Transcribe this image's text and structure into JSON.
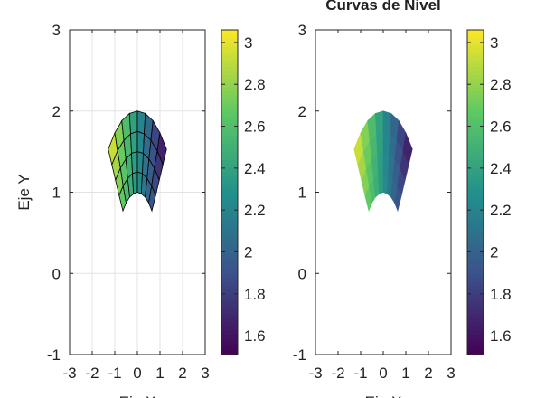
{
  "chart_data": [
    {
      "type": "surface",
      "ylabel": "Eje Y",
      "xlabel": "Eje X",
      "grid": true,
      "edges": true,
      "colormap": "viridis",
      "xlim": [
        -3,
        3
      ],
      "ylim": [
        -1,
        3
      ],
      "xticks": [
        -3,
        -2,
        -1,
        0,
        1,
        2,
        3
      ],
      "yticks": [
        -1,
        0,
        1,
        2,
        3
      ],
      "clim": [
        1.51,
        3.06
      ],
      "colorbar_ticks": [
        1.6,
        1.8,
        2,
        2.2,
        2.4,
        2.6,
        2.8,
        3
      ],
      "x": [
        [
          -0.64,
          -0.5,
          -0.34,
          -0.17,
          0,
          0.17,
          0.34,
          0.5,
          0.64
        ],
        [
          -0.81,
          -0.63,
          -0.43,
          -0.22,
          0,
          0.22,
          0.43,
          0.63,
          0.81
        ],
        [
          -0.97,
          -0.75,
          -0.51,
          -0.26,
          0,
          0.26,
          0.51,
          0.75,
          0.97
        ],
        [
          -1.13,
          -0.88,
          -0.6,
          -0.3,
          0,
          0.3,
          0.6,
          0.88,
          1.13
        ],
        [
          -1.29,
          -1,
          -0.69,
          -0.35,
          0,
          0.35,
          0.69,
          1,
          1.29
        ]
      ],
      "y": [
        [
          0.77,
          0.87,
          0.94,
          0.98,
          1,
          0.98,
          0.94,
          0.87,
          0.77
        ],
        [
          0.96,
          1.08,
          1.17,
          1.23,
          1.25,
          1.23,
          1.17,
          1.08,
          0.96
        ],
        [
          1.15,
          1.3,
          1.41,
          1.48,
          1.5,
          1.48,
          1.41,
          1.3,
          1.15
        ],
        [
          1.34,
          1.51,
          1.64,
          1.72,
          1.75,
          1.72,
          1.64,
          1.51,
          1.34
        ],
        [
          1.53,
          1.73,
          1.88,
          1.97,
          2,
          1.97,
          1.88,
          1.73,
          1.53
        ]
      ],
      "z": [
        [
          2.67,
          2.59,
          2.5,
          2.4,
          2.3,
          2.2,
          2.1,
          2.01,
          1.93
        ],
        [
          2.77,
          2.67,
          2.55,
          2.43,
          2.3,
          2.17,
          2.05,
          1.93,
          1.83
        ],
        [
          2.86,
          2.74,
          2.6,
          2.45,
          2.3,
          2.15,
          2,
          1.87,
          1.74
        ],
        [
          2.96,
          2.81,
          2.65,
          2.47,
          2.3,
          2.13,
          1.95,
          1.79,
          1.64
        ],
        [
          3.05,
          2.88,
          2.7,
          2.5,
          2.3,
          2.1,
          1.9,
          1.72,
          1.55
        ]
      ]
    },
    {
      "type": "contour",
      "title": "Curvas de Nivel",
      "xlabel": "Eje X",
      "grid": false,
      "edges": false,
      "colormap": "viridis",
      "xlim": [
        -3,
        3
      ],
      "ylim": [
        -1,
        3
      ],
      "xticks": [
        -3,
        -2,
        -1,
        0,
        1,
        2,
        3
      ],
      "yticks": [
        -1,
        0,
        1,
        2,
        3
      ],
      "clim": [
        1.51,
        3.06
      ],
      "colorbar_ticks": [
        1.6,
        1.8,
        2,
        2.2,
        2.4,
        2.6,
        2.8,
        3
      ],
      "x": [
        [
          -0.64,
          -0.5,
          -0.34,
          -0.17,
          0,
          0.17,
          0.34,
          0.5,
          0.64
        ],
        [
          -0.81,
          -0.63,
          -0.43,
          -0.22,
          0,
          0.22,
          0.43,
          0.63,
          0.81
        ],
        [
          -0.97,
          -0.75,
          -0.51,
          -0.26,
          0,
          0.26,
          0.51,
          0.75,
          0.97
        ],
        [
          -1.13,
          -0.88,
          -0.6,
          -0.3,
          0,
          0.3,
          0.6,
          0.88,
          1.13
        ],
        [
          -1.29,
          -1,
          -0.69,
          -0.35,
          0,
          0.35,
          0.69,
          1,
          1.29
        ]
      ],
      "y": [
        [
          0.77,
          0.87,
          0.94,
          0.98,
          1,
          0.98,
          0.94,
          0.87,
          0.77
        ],
        [
          0.96,
          1.08,
          1.17,
          1.23,
          1.25,
          1.23,
          1.17,
          1.08,
          0.96
        ],
        [
          1.15,
          1.3,
          1.41,
          1.48,
          1.5,
          1.48,
          1.41,
          1.3,
          1.15
        ],
        [
          1.34,
          1.51,
          1.64,
          1.72,
          1.75,
          1.72,
          1.64,
          1.51,
          1.34
        ],
        [
          1.53,
          1.73,
          1.88,
          1.97,
          2,
          1.97,
          1.88,
          1.73,
          1.53
        ]
      ],
      "z": [
        [
          2.67,
          2.59,
          2.5,
          2.4,
          2.3,
          2.2,
          2.1,
          2.01,
          1.93
        ],
        [
          2.77,
          2.67,
          2.55,
          2.43,
          2.3,
          2.17,
          2.05,
          1.93,
          1.83
        ],
        [
          2.86,
          2.74,
          2.6,
          2.45,
          2.3,
          2.15,
          2,
          1.87,
          1.74
        ],
        [
          2.96,
          2.81,
          2.65,
          2.47,
          2.3,
          2.13,
          1.95,
          1.79,
          1.64
        ],
        [
          3.05,
          2.88,
          2.7,
          2.5,
          2.3,
          2.1,
          1.9,
          1.72,
          1.55
        ]
      ]
    }
  ]
}
